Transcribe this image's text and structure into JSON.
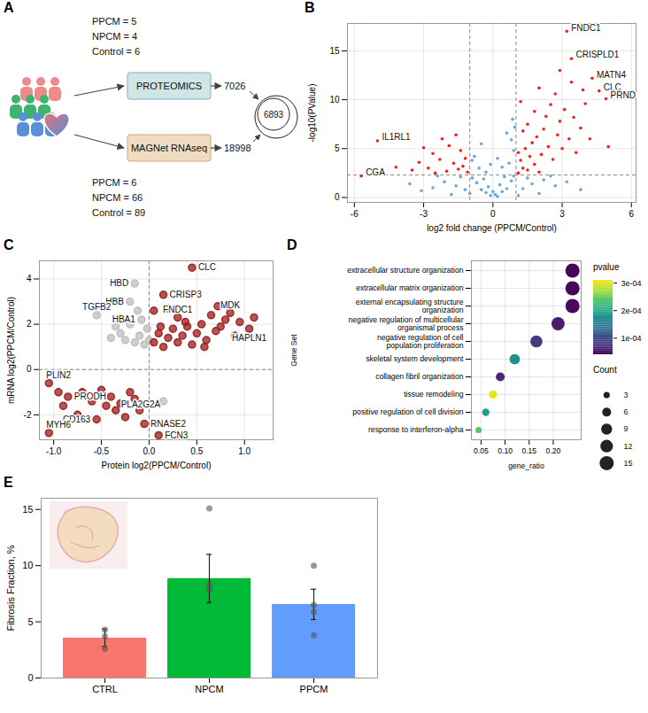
{
  "diagram": {
    "panel": "A",
    "groups": [
      {
        "labels": [
          "PPCM = 5",
          "NPCM = 4",
          "Control = 6"
        ],
        "method": "PROTEOMICS",
        "count": "7026"
      },
      {
        "labels": [
          "PPCM = 6",
          "NPCM = 66",
          "Control = 89"
        ],
        "method": "MAGNet RNAseq",
        "count": "18998"
      }
    ],
    "overlap": "6893"
  },
  "chart_data": [
    {
      "panel": "B",
      "type": "scatter",
      "x_label": "log2 fold change (PPCM/Control)",
      "y_label": "-log10(PValue)",
      "xlim": [
        -6.3,
        6.2
      ],
      "xticks": [
        -6,
        -3,
        0,
        3,
        6
      ],
      "ylim": [
        -0.5,
        17.8
      ],
      "yticks": [
        0,
        5,
        10,
        15
      ],
      "grid": true,
      "reference_lines": {
        "x": [
          -1,
          1
        ],
        "y": [
          2.3
        ]
      },
      "series": [
        {
          "color": "#6aa7d8",
          "values": [
            [
              -0.1,
              0.2
            ],
            [
              0.1,
              0.3
            ],
            [
              0.2,
              0.1
            ],
            [
              -0.3,
              0.5
            ],
            [
              0.4,
              0.6
            ],
            [
              -0.5,
              0.8
            ],
            [
              0.6,
              0.9
            ],
            [
              -0.2,
              1.1
            ],
            [
              0.3,
              1.3
            ],
            [
              -0.7,
              1.5
            ],
            [
              0.8,
              1.7
            ],
            [
              -0.9,
              2.0
            ],
            [
              0.9,
              2.2
            ],
            [
              0.0,
              0.6
            ],
            [
              -0.4,
              1.9
            ],
            [
              0.5,
              2.1
            ],
            [
              -1.2,
              0.8
            ],
            [
              1.3,
              0.9
            ],
            [
              -1.6,
              1.2
            ],
            [
              1.7,
              1.4
            ],
            [
              -2.1,
              1.6
            ],
            [
              2.2,
              1.8
            ],
            [
              -2.6,
              1.0
            ],
            [
              2.7,
              1.2
            ],
            [
              -3.1,
              0.7
            ],
            [
              3.2,
              1.6
            ],
            [
              -0.6,
              3.0
            ],
            [
              0.7,
              3.5
            ],
            [
              -0.8,
              4.2
            ],
            [
              0.9,
              4.8
            ],
            [
              -0.5,
              5.5
            ],
            [
              0.8,
              5.9
            ],
            [
              0.6,
              6.6
            ],
            [
              -0.9,
              3.8
            ],
            [
              0.95,
              7.2
            ],
            [
              -0.3,
              2.6
            ],
            [
              0.4,
              3.1
            ],
            [
              1.5,
              2.0
            ],
            [
              -1.4,
              2.1
            ],
            [
              2.0,
              0.4
            ],
            [
              -1.8,
              0.3
            ],
            [
              1.1,
              0.2
            ],
            [
              -1.0,
              0.4
            ],
            [
              3.8,
              0.8
            ],
            [
              -3.6,
              1.4
            ],
            [
              2.5,
              2.2
            ],
            [
              -2.4,
              2.2
            ],
            [
              0.2,
              4.0
            ],
            [
              -0.1,
              3.4
            ],
            [
              0.85,
              8.0
            ]
          ]
        },
        {
          "color": "#ff1a1a",
          "values": [
            [
              1.1,
              2.5
            ],
            [
              1.3,
              3.0
            ],
            [
              1.5,
              2.8
            ],
            [
              1.2,
              3.8
            ],
            [
              1.6,
              4.2
            ],
            [
              1.4,
              5.0
            ],
            [
              1.8,
              3.4
            ],
            [
              2.0,
              2.6
            ],
            [
              1.1,
              4.6
            ],
            [
              1.7,
              5.6
            ],
            [
              2.1,
              4.4
            ],
            [
              1.9,
              6.2
            ],
            [
              1.3,
              6.8
            ],
            [
              2.4,
              5.2
            ],
            [
              2.2,
              7.0
            ],
            [
              1.5,
              7.5
            ],
            [
              2.6,
              3.9
            ],
            [
              2.8,
              6.4
            ],
            [
              2.3,
              8.3
            ],
            [
              1.8,
              8.8
            ],
            [
              3.0,
              5.0
            ],
            [
              2.9,
              7.8
            ],
            [
              2.5,
              9.5
            ],
            [
              3.3,
              6.0
            ],
            [
              3.1,
              9.0
            ],
            [
              2.7,
              10.6
            ],
            [
              3.5,
              8.2
            ],
            [
              3.6,
              4.6
            ],
            [
              3.8,
              7.1
            ],
            [
              2.0,
              11.2
            ],
            [
              3.4,
              11.8
            ],
            [
              4.0,
              9.6
            ],
            [
              4.3,
              12.2
            ],
            [
              4.6,
              10.9
            ],
            [
              4.9,
              10.1
            ],
            [
              3.4,
              14.2
            ],
            [
              3.2,
              17.0
            ],
            [
              2.9,
              13.0
            ],
            [
              3.9,
              11.0
            ],
            [
              1.2,
              9.8
            ],
            [
              4.2,
              6.0
            ],
            [
              5.0,
              5.2
            ],
            [
              -1.1,
              2.6
            ],
            [
              -1.3,
              3.2
            ],
            [
              -1.5,
              2.9
            ],
            [
              -1.2,
              4.0
            ],
            [
              -1.7,
              3.5
            ],
            [
              -2.0,
              2.7
            ],
            [
              -1.4,
              4.8
            ],
            [
              -2.3,
              3.9
            ],
            [
              -1.9,
              5.3
            ],
            [
              -2.6,
              4.5
            ],
            [
              -2.8,
              3.0
            ],
            [
              -3.2,
              3.6
            ],
            [
              -2.2,
              6.0
            ],
            [
              -1.6,
              6.4
            ],
            [
              -3.5,
              2.8
            ],
            [
              -4.2,
              3.1
            ],
            [
              -5.0,
              5.8
            ],
            [
              -5.7,
              2.2
            ],
            [
              -3.0,
              5.1
            ],
            [
              -2.5,
              2.5
            ]
          ]
        }
      ],
      "annotations": [
        {
          "text": "FNDC1",
          "x": 3.2,
          "y": 17.0
        },
        {
          "text": "CRISPLD1",
          "x": 3.4,
          "y": 14.2
        },
        {
          "text": "MATN4",
          "x": 4.3,
          "y": 12.2
        },
        {
          "text": "CLC",
          "x": 4.6,
          "y": 10.9
        },
        {
          "text": "PRND",
          "x": 4.9,
          "y": 10.1
        },
        {
          "text": "IL1RL1",
          "x": -5.0,
          "y": 5.8
        },
        {
          "text": "CGA",
          "x": -5.7,
          "y": 2.2
        }
      ]
    },
    {
      "panel": "C",
      "type": "scatter",
      "x_label": "Protein log2(PPCM/Control)",
      "y_label": "mRNA log2(PPCM/Control)",
      "xlim": [
        -1.15,
        1.3
      ],
      "xticks": [
        {
          "value": -1,
          "label": "-1.0"
        },
        {
          "value": -0.5,
          "label": "-0.5"
        },
        {
          "value": 0,
          "label": "0.0"
        },
        {
          "value": 0.5,
          "label": "0.5"
        },
        {
          "value": 1,
          "label": "1.0"
        }
      ],
      "ylim": [
        -3.1,
        4.8
      ],
      "yticks": [
        -2,
        0,
        2,
        4
      ],
      "grid": true,
      "reference_lines": {
        "x": [
          0
        ],
        "y": [
          0
        ]
      },
      "series": [
        {
          "color": "#bdbdbd",
          "values": [
            [
              -0.15,
              3.8
            ],
            [
              -0.2,
              3.0
            ],
            [
              -0.08,
              2.2
            ],
            [
              -0.55,
              2.4
            ],
            [
              -0.3,
              1.6
            ],
            [
              -0.25,
              1.3
            ],
            [
              -0.1,
              1.5
            ],
            [
              -0.05,
              1.1
            ],
            [
              -0.35,
              1.9
            ],
            [
              -0.2,
              2.0
            ],
            [
              -0.15,
              1.2
            ],
            [
              -0.4,
              1.4
            ],
            [
              -0.12,
              2.6
            ],
            [
              -0.02,
              1.8
            ],
            [
              0.0,
              1.3
            ],
            [
              0.15,
              -1.4
            ]
          ]
        },
        {
          "color": "#9b1b1b",
          "values": [
            [
              0.05,
              1.2
            ],
            [
              0.1,
              1.6
            ],
            [
              0.15,
              1.0
            ],
            [
              0.2,
              1.4
            ],
            [
              0.25,
              1.8
            ],
            [
              0.3,
              1.2
            ],
            [
              0.35,
              1.5
            ],
            [
              0.4,
              1.9
            ],
            [
              0.45,
              1.1
            ],
            [
              0.5,
              1.6
            ],
            [
              0.55,
              2.0
            ],
            [
              0.6,
              1.3
            ],
            [
              0.65,
              2.4
            ],
            [
              0.7,
              1.7
            ],
            [
              0.75,
              1.9
            ],
            [
              0.8,
              2.2
            ],
            [
              0.85,
              2.5
            ],
            [
              0.9,
              1.5
            ],
            [
              0.95,
              2.1
            ],
            [
              1.05,
              1.8
            ],
            [
              1.1,
              2.3
            ],
            [
              0.3,
              2.3
            ],
            [
              0.15,
              3.3
            ],
            [
              0.45,
              4.5
            ],
            [
              0.2,
              2.7
            ],
            [
              0.38,
              2.1
            ],
            [
              0.12,
              1.9
            ],
            [
              0.58,
              1.0
            ],
            [
              0.72,
              2.8
            ],
            [
              0.05,
              2.6
            ],
            [
              -1.05,
              -0.6
            ],
            [
              -0.85,
              -1.2
            ],
            [
              -1.05,
              -2.8
            ],
            [
              -0.35,
              -1.8
            ],
            [
              -0.55,
              -2.2
            ],
            [
              -0.05,
              -2.4
            ],
            [
              0.1,
              -2.9
            ],
            [
              -0.9,
              -1.6
            ],
            [
              -0.7,
              -1.0
            ],
            [
              -0.6,
              -1.4
            ],
            [
              -0.5,
              -0.9
            ],
            [
              -0.4,
              -1.2
            ],
            [
              -0.3,
              -1.5
            ],
            [
              -0.2,
              -1.0
            ],
            [
              -0.15,
              -1.3
            ],
            [
              -0.1,
              -1.8
            ],
            [
              -0.75,
              -2.0
            ],
            [
              -0.95,
              -1.0
            ],
            [
              -0.25,
              -2.1
            ],
            [
              -0.45,
              -1.6
            ]
          ]
        }
      ],
      "annotations": [
        {
          "text": "CLC",
          "x": 0.45,
          "y": 4.5
        },
        {
          "text": "HBD",
          "x": -0.15,
          "y": 3.8
        },
        {
          "text": "HBB",
          "x": -0.2,
          "y": 3.0
        },
        {
          "text": "CRISP3",
          "x": 0.15,
          "y": 3.3
        },
        {
          "text": "HBA1",
          "x": -0.08,
          "y": 2.2
        },
        {
          "text": "FNDC1",
          "x": 0.3,
          "y": 2.3
        },
        {
          "text": "MDK",
          "x": 0.85,
          "y": 2.5
        },
        {
          "text": "HAPLN1",
          "x": 1.05,
          "y": 1.8
        },
        {
          "text": "TGFB2",
          "x": -0.55,
          "y": 2.4
        },
        {
          "text": "PLIN2",
          "x": -1.05,
          "y": -0.6
        },
        {
          "text": "PRODH",
          "x": -0.85,
          "y": -1.2
        },
        {
          "text": "PLA2G2A",
          "x": -0.35,
          "y": -1.8
        },
        {
          "text": "CD163",
          "x": -0.55,
          "y": -2.2
        },
        {
          "text": "RNASE2",
          "x": -0.05,
          "y": -2.4
        },
        {
          "text": "MYH6",
          "x": -1.05,
          "y": -2.8
        },
        {
          "text": "FCN3",
          "x": 0.1,
          "y": -2.9
        }
      ]
    },
    {
      "panel": "D",
      "type": "dot",
      "x_label": "gene_ratio",
      "y_label": "Gene Set",
      "categories": [
        "extracellular structure organization",
        "extracellular matrix organization",
        "external encapsulating structure organization",
        "negative regulation of multicellular organismal process",
        "negative regulation of cell population proliferation",
        "skeletal system development",
        "collagen fibril organization",
        "tissue remodeling",
        "positive regulation of cell division",
        "response to interferon-alpha"
      ],
      "values": [
        0.24,
        0.24,
        0.24,
        0.21,
        0.165,
        0.12,
        0.09,
        0.075,
        0.06,
        0.045
      ],
      "counts": [
        15,
        15,
        15,
        13,
        11,
        8,
        6,
        5,
        4,
        3
      ],
      "pvalues": [
        4.5e-05,
        4.5e-05,
        4.8e-05,
        6e-05,
        8.5e-05,
        0.000175,
        7e-05,
        0.0003,
        0.00019,
        0.00024
      ],
      "xlim": [
        0.03,
        0.258
      ],
      "xticks": [
        0.05,
        {
          "value": 0.1,
          "label": "0.10"
        },
        0.15,
        {
          "value": 0.2,
          "label": "0.20"
        }
      ],
      "grid": true,
      "pvalue_label": "pvalue",
      "pvalue_range": [
        4e-05,
        0.00031
      ],
      "pvalue_ticks": [
        {
          "value": 0.0001,
          "label": "1e-04"
        },
        {
          "value": 0.0002,
          "label": "2e-04"
        },
        {
          "value": 0.0003,
          "label": "3e-04"
        }
      ],
      "count_label": "Count",
      "count_legend": [
        3,
        6,
        9,
        12,
        15
      ]
    },
    {
      "panel": "E",
      "type": "bar",
      "y_label": "Fibrosis Fraction, %",
      "categories": [
        "CTRL",
        "NPCM",
        "PPCM"
      ],
      "values": [
        3.55,
        8.85,
        6.55
      ],
      "colors": [
        "#f8766d",
        "#00ba38",
        "#619cff"
      ],
      "error_low": [
        2.8,
        6.7,
        5.2
      ],
      "error_high": [
        4.35,
        11.0,
        7.9
      ],
      "points": [
        [
          2.6,
          3.7,
          4.3
        ],
        [
          15.1,
          8.3,
          7.9
        ],
        [
          10.0,
          6.5,
          5.9,
          3.8
        ]
      ],
      "ylim": [
        0,
        16
      ],
      "yticks": [
        0,
        5,
        10,
        15
      ],
      "grid": false
    }
  ]
}
